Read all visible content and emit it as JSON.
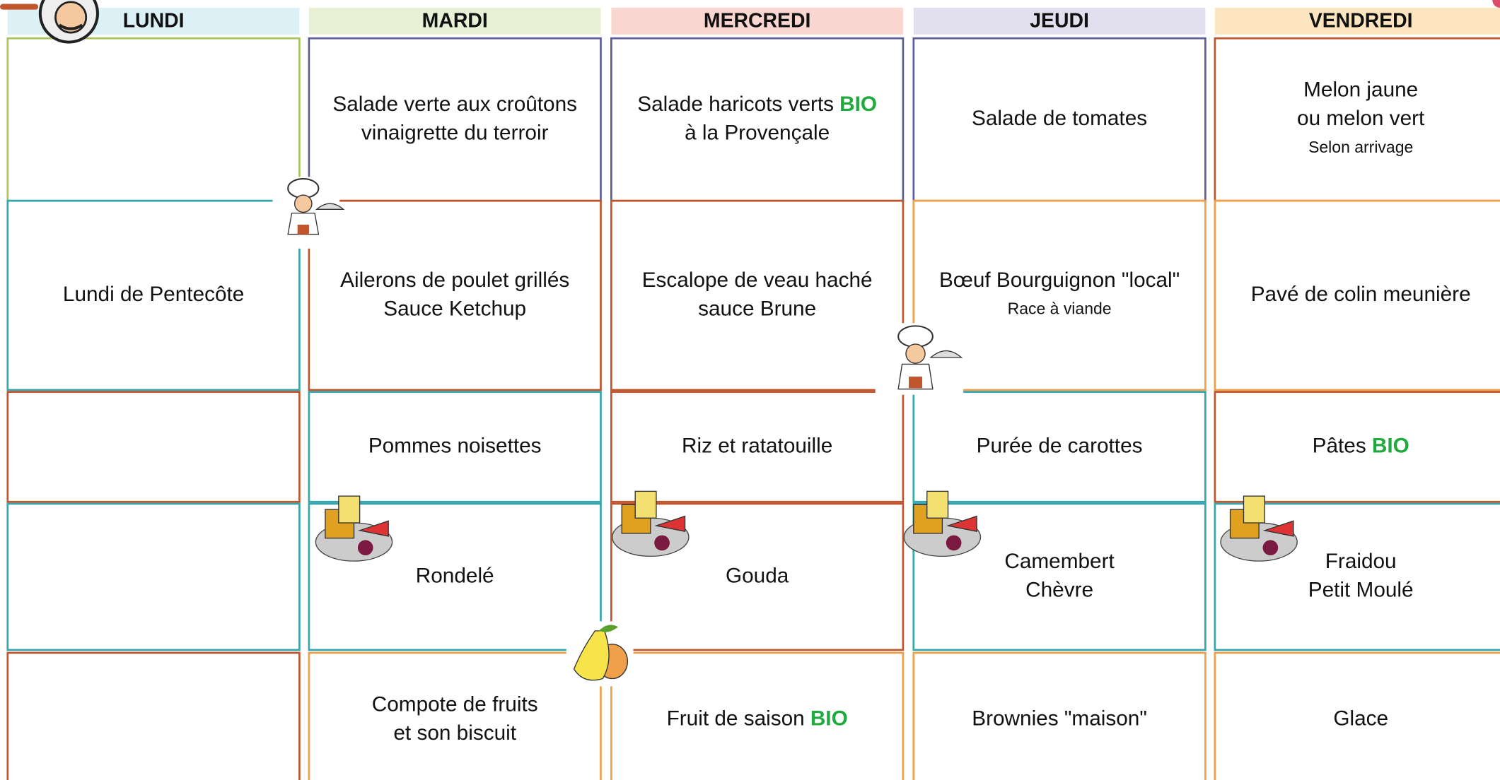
{
  "menu": {
    "days": [
      {
        "name": "LUNDI",
        "header_color": "#dcf1f6",
        "items": [
          {
            "border": "#a9c35e",
            "lines": []
          },
          {
            "border": "#35a5ae",
            "lines": [
              {
                "text": "Lundi de Pentecôte"
              }
            ]
          },
          {
            "border": "#c1552c",
            "lines": []
          },
          {
            "border": "#35a5ae",
            "lines": []
          },
          {
            "border": "#c1552c",
            "lines": []
          }
        ]
      },
      {
        "name": "MARDI",
        "header_color": "#e8f0d6",
        "items": [
          {
            "border": "#5d5e9c",
            "lines": [
              {
                "text": "Salade verte aux croûtons"
              },
              {
                "text": "vinaigrette du terroir"
              }
            ]
          },
          {
            "border": "#c1552c",
            "lines": [
              {
                "text": "Ailerons de poulet grillés"
              },
              {
                "text": "Sauce Ketchup"
              }
            ]
          },
          {
            "border": "#35a5ae",
            "lines": [
              {
                "text": "Pommes noisettes"
              }
            ]
          },
          {
            "border": "#35a5ae",
            "lines": [
              {
                "text": "Rondelé"
              }
            ]
          },
          {
            "border": "#f0a04b",
            "lines": [
              {
                "text": "Compote de fruits"
              },
              {
                "text": "et son biscuit"
              }
            ]
          }
        ]
      },
      {
        "name": "MERCREDI",
        "header_color": "#f9d7d0",
        "items": [
          {
            "border": "#5d5e9c",
            "lines": [
              {
                "text": "Salade haricots verts",
                "tag": "BIO"
              },
              {
                "text": "à la Provençale"
              }
            ]
          },
          {
            "border": "#c1552c",
            "lines": [
              {
                "text": "Escalope de veau haché"
              },
              {
                "text": "sauce Brune"
              }
            ]
          },
          {
            "border": "#c1552c",
            "lines": [
              {
                "text": "Riz et ratatouille"
              }
            ]
          },
          {
            "border": "#c1552c",
            "lines": [
              {
                "text": "Gouda"
              }
            ]
          },
          {
            "border": "#f0a04b",
            "lines": [
              {
                "text": "Fruit de saison",
                "tag": "BIO"
              }
            ]
          }
        ]
      },
      {
        "name": "JEUDI",
        "header_color": "#e2e0ee",
        "items": [
          {
            "border": "#5d5e9c",
            "lines": [
              {
                "text": "Salade de tomates"
              }
            ]
          },
          {
            "border": "#f0a04b",
            "lines": [
              {
                "text": "Bœuf Bourguignon \"local\""
              },
              {
                "text": "Race à viande",
                "small": true
              }
            ]
          },
          {
            "border": "#35a5ae",
            "lines": [
              {
                "text": "Purée de carottes"
              }
            ]
          },
          {
            "border": "#35a5ae",
            "lines": [
              {
                "text": "Camembert"
              },
              {
                "text": "Chèvre"
              }
            ]
          },
          {
            "border": "#f0a04b",
            "lines": [
              {
                "text": "Brownies \"maison\""
              }
            ]
          }
        ]
      },
      {
        "name": "VENDREDI",
        "header_color": "#fde5bf",
        "items": [
          {
            "border": "#c1552c",
            "lines": [
              {
                "text": "Melon jaune"
              },
              {
                "text": "ou melon vert"
              },
              {
                "text": "Selon arrivage",
                "small": true
              }
            ]
          },
          {
            "border": "#f0a04b",
            "lines": [
              {
                "text": "Pavé de colin meunière"
              }
            ]
          },
          {
            "border": "#c1552c",
            "lines": [
              {
                "text": "Pâtes",
                "tag": "BIO"
              }
            ]
          },
          {
            "border": "#35a5ae",
            "lines": [
              {
                "text": "Fraidou"
              },
              {
                "text": "Petit Moulé"
              }
            ]
          },
          {
            "border": "#f0a04b",
            "lines": [
              {
                "text": "Glace"
              }
            ]
          }
        ]
      }
    ]
  }
}
